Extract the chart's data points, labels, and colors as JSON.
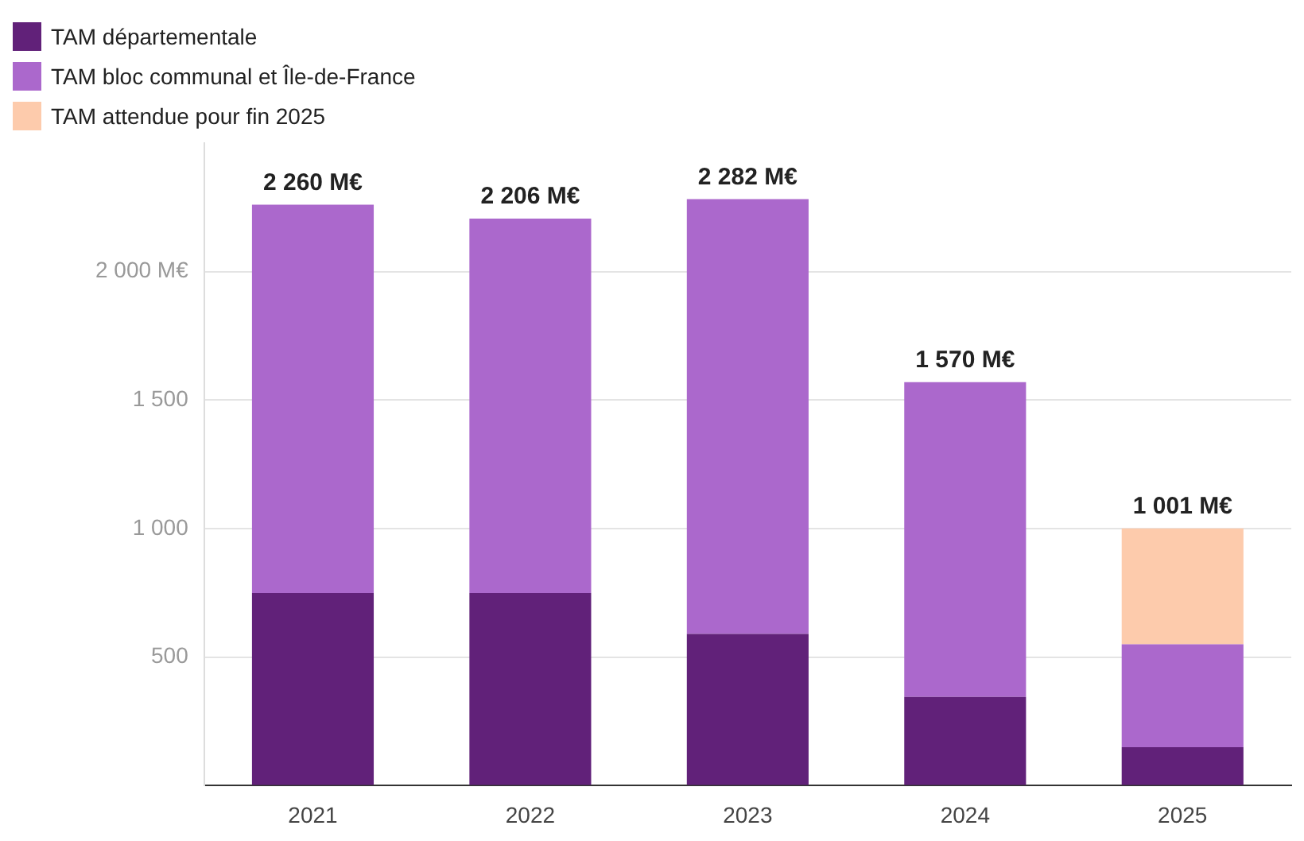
{
  "chart_data": {
    "type": "bar",
    "stacked": true,
    "categories": [
      "2021",
      "2022",
      "2023",
      "2024",
      "2025"
    ],
    "series": [
      {
        "name": "TAM départementale",
        "color": "#612179",
        "values": [
          750,
          750,
          590,
          345,
          150
        ]
      },
      {
        "name": "TAM bloc communal et Île-de-France",
        "color": "#ab68cc",
        "values": [
          1510,
          1456,
          1692,
          1225,
          400
        ]
      },
      {
        "name": "TAM attendue pour fin 2025",
        "color": "#fdcbac",
        "values": [
          null,
          null,
          null,
          null,
          451
        ]
      }
    ],
    "totals": [
      "2 260 M€",
      "2 206 M€",
      "2 282 M€",
      "1 570 M€",
      "1 001 M€"
    ],
    "ylim": [
      0,
      2500
    ],
    "yticks": [
      {
        "value": 0,
        "label": null
      },
      {
        "value": 500,
        "label": "500"
      },
      {
        "value": 1000,
        "label": "1 000"
      },
      {
        "value": 1500,
        "label": "1 500"
      },
      {
        "value": 2000,
        "label": "2 000 M€"
      }
    ],
    "grid": "y",
    "legend": "top left"
  }
}
